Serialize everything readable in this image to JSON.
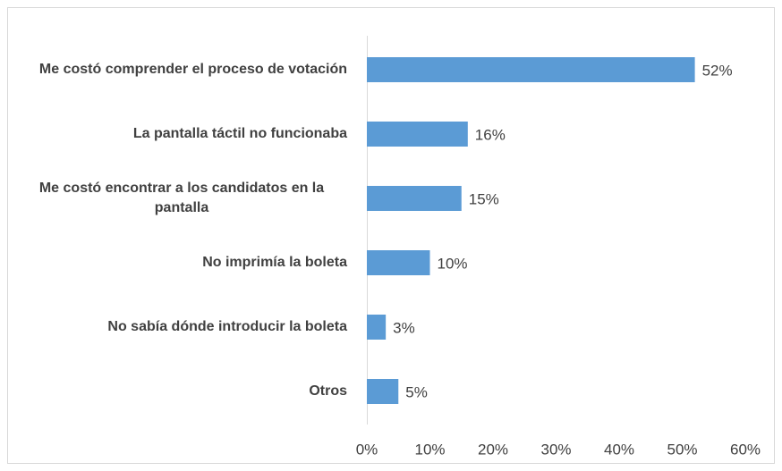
{
  "chart_data": {
    "type": "bar",
    "orientation": "horizontal",
    "categories": [
      "Me costó comprender el proceso de votación",
      "La pantalla táctil no funcionaba",
      "Me costó encontrar a los candidatos en la pantalla",
      "No imprimía la boleta",
      "No sabía dónde introducir la boleta",
      "Otros"
    ],
    "values": [
      52,
      16,
      15,
      10,
      3,
      5
    ],
    "value_labels": [
      "52%",
      "16%",
      "15%",
      "10%",
      "3%",
      "5%"
    ],
    "color": "#5b9bd5",
    "xlim": [
      0,
      60
    ],
    "xticks": [
      {
        "value": 0,
        "label": "0%"
      },
      {
        "value": 10,
        "label": "10%"
      },
      {
        "value": 20,
        "label": "20%"
      },
      {
        "value": 30,
        "label": "30%"
      },
      {
        "value": 40,
        "label": "40%"
      },
      {
        "value": 50,
        "label": "50%"
      },
      {
        "value": 60,
        "label": "60%"
      }
    ],
    "grid": false
  }
}
